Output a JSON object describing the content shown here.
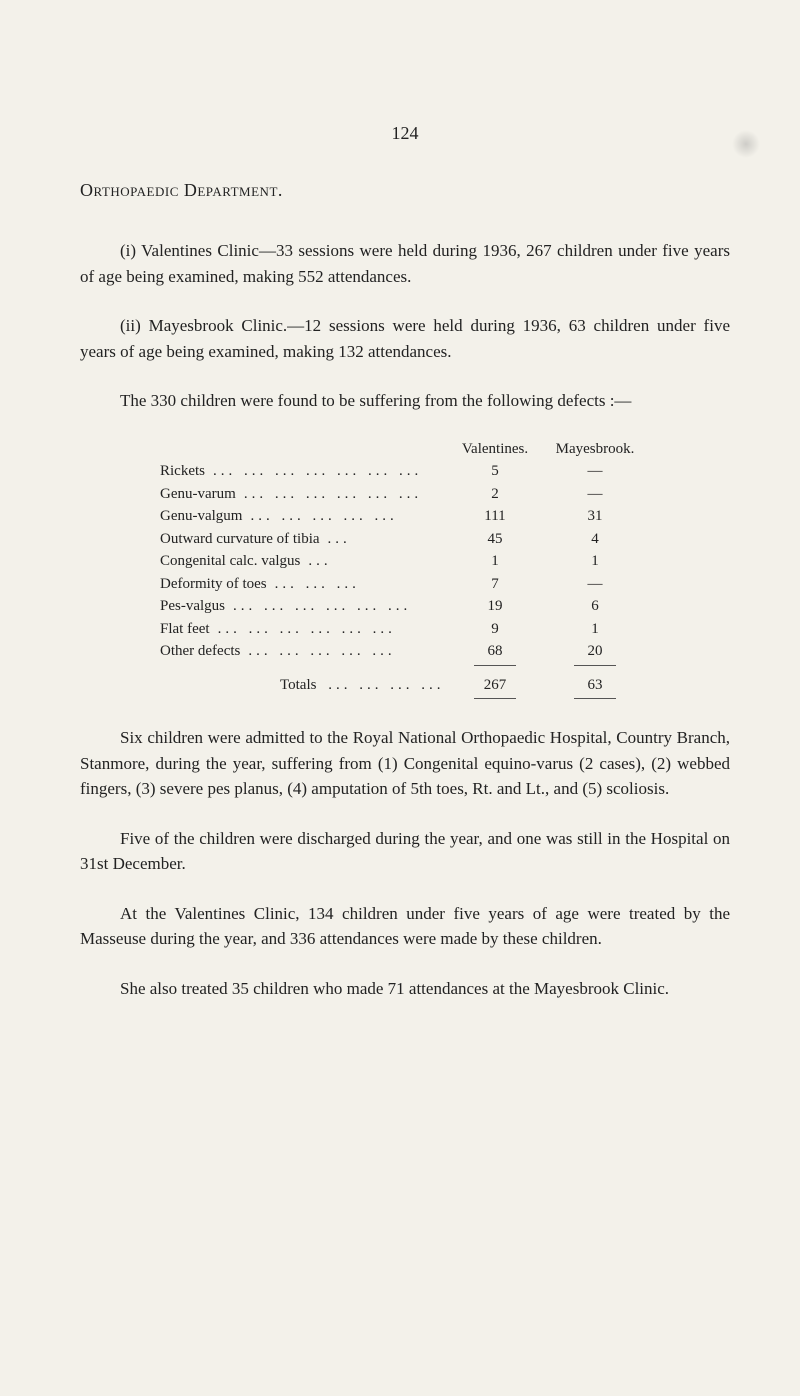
{
  "page_number": "124",
  "section_heading": "Orthopaedic Department.",
  "para1": "(i) Valentines Clinic—33 sessions were held during 1936, 267 children under five years of age being examined, making 552 attendances.",
  "para2": "(ii) Mayesbrook Clinic.—12 sessions were held during 1936, 63 children under five years of age being examined, making 132 attendances.",
  "para3": "The 330 children were found to be suffering from the following defects :—",
  "table": {
    "col1_header": "Valentines.",
    "col2_header": "Mayesbrook.",
    "rows": [
      {
        "label": "Rickets",
        "val": "5",
        "may": "—"
      },
      {
        "label": "Genu-varum",
        "val": "2",
        "may": "—"
      },
      {
        "label": "Genu-valgum",
        "val": "111",
        "may": "31"
      },
      {
        "label": "Outward curvature of tibia",
        "val": "45",
        "may": "4"
      },
      {
        "label": "Congenital calc. valgus",
        "val": "1",
        "may": "1"
      },
      {
        "label": "Deformity of toes",
        "val": "7",
        "may": "—"
      },
      {
        "label": "Pes-valgus",
        "val": "19",
        "may": "6"
      },
      {
        "label": "Flat feet",
        "val": "9",
        "may": "1"
      },
      {
        "label": "Other defects",
        "val": "68",
        "may": "20"
      }
    ],
    "totals_label": "Totals",
    "totals_val": "267",
    "totals_may": "63"
  },
  "para4": "Six children were admitted to the Royal National Orthopaedic Hospital, Country Branch, Stanmore, during the year, suffering from (1) Congenital equino-varus (2 cases), (2) webbed fingers, (3) severe pes planus, (4) amputation of 5th toes, Rt. and Lt., and (5) scoliosis.",
  "para5": "Five of the children were discharged during the year, and one was still in the Hospital on 31st December.",
  "para6": "At the Valentines Clinic, 134 children under five years of age were treated by the Masseuse during the year, and 336 attendances were made by these children.",
  "para7": "She also treated 35 children who made 71 attendances at the Mayesbrook Clinic."
}
